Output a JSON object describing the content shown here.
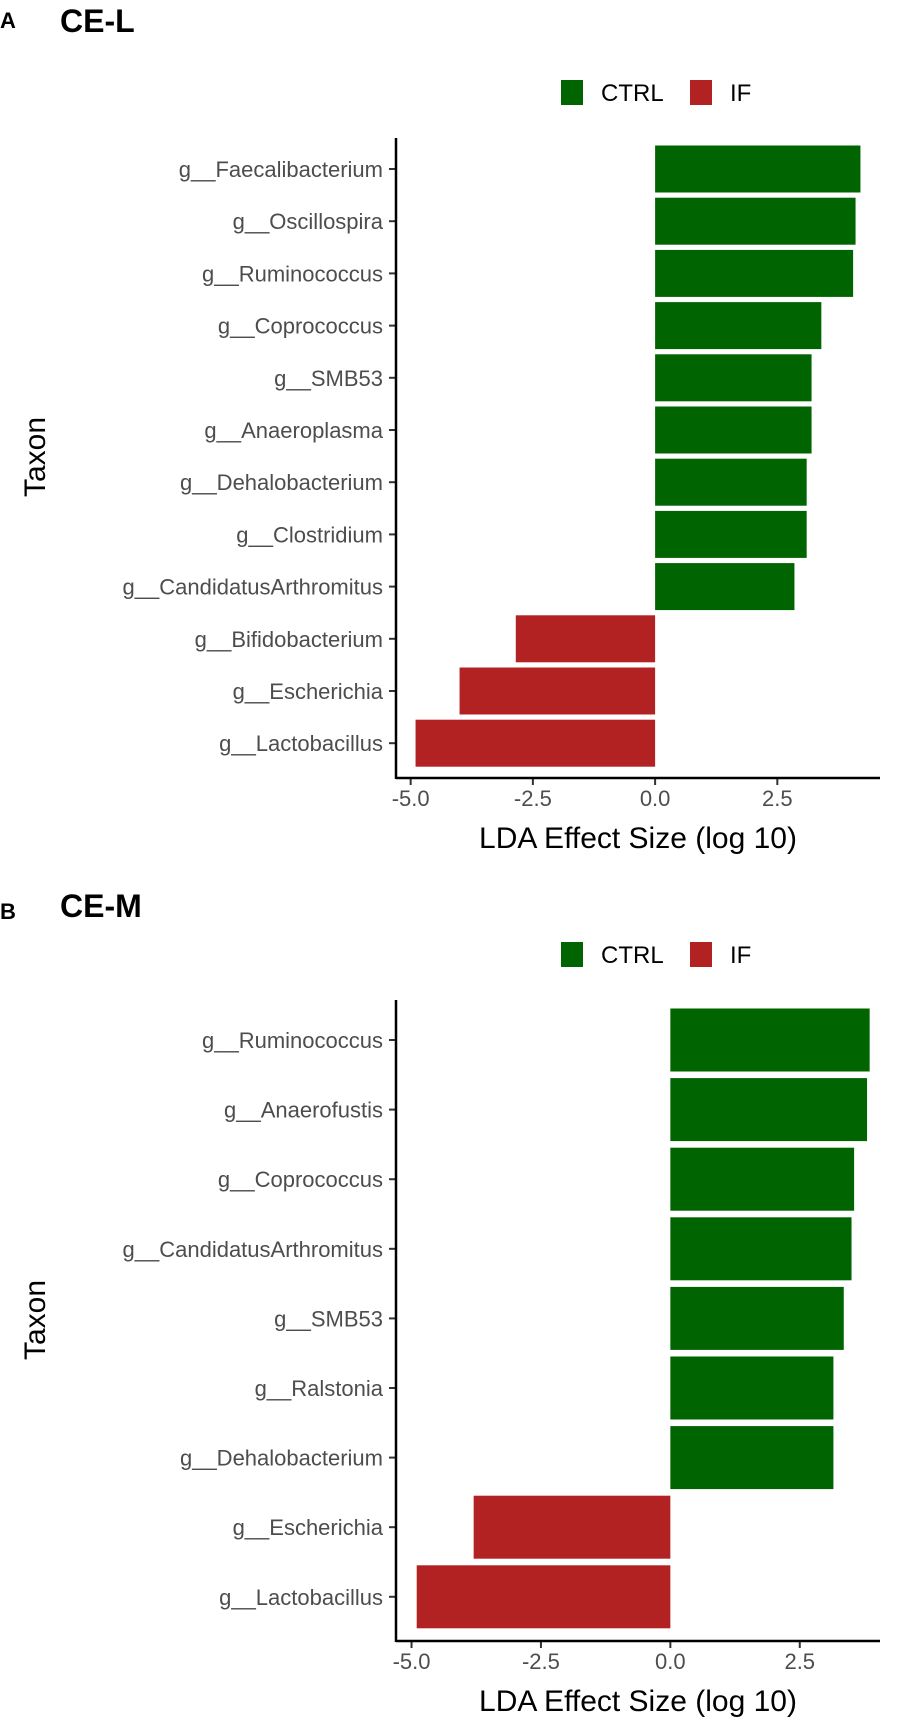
{
  "legend": [
    {
      "label": "CTRL",
      "color": "#006400"
    },
    {
      "label": "IF",
      "color": "#b22222"
    }
  ],
  "chart_data": [
    {
      "type": "bar",
      "orientation": "horizontal",
      "panel": "A",
      "title": "CE-L",
      "xlabel": "LDA Effect Size (log 10)",
      "ylabel": "Taxon",
      "xlim": [
        -5.3,
        4.6
      ],
      "xticks": [
        "-5.0",
        "-2.5",
        "0.0",
        "2.5"
      ],
      "xtick_values": [
        -5.0,
        -2.5,
        0.0,
        2.5
      ],
      "categories": [
        "g__Faecalibacterium",
        "g__Oscillospira",
        "g__Ruminococcus",
        "g__Coprococcus",
        "g__SMB53",
        "g__Anaeroplasma",
        "g__Dehalobacterium",
        "g__Clostridium",
        "g__CandidatusArthromitus",
        "g__Bifidobacterium",
        "g__Escherichia",
        "g__Lactobacillus"
      ],
      "values": [
        4.2,
        4.1,
        4.05,
        3.4,
        3.2,
        3.2,
        3.1,
        3.1,
        2.85,
        -2.85,
        -4.0,
        -4.9
      ],
      "groups": [
        "CTRL",
        "CTRL",
        "CTRL",
        "CTRL",
        "CTRL",
        "CTRL",
        "CTRL",
        "CTRL",
        "CTRL",
        "IF",
        "IF",
        "IF"
      ]
    },
    {
      "type": "bar",
      "orientation": "horizontal",
      "panel": "B",
      "title": "CE-M",
      "xlabel": "LDA Effect Size (log 10)",
      "ylabel": "Taxon",
      "xlim": [
        -5.3,
        4.05
      ],
      "xticks": [
        "-5.0",
        "-2.5",
        "0.0",
        "2.5"
      ],
      "xtick_values": [
        -5.0,
        -2.5,
        0.0,
        2.5
      ],
      "categories": [
        "g__Ruminococcus",
        "g__Anaerofustis",
        "g__Coprococcus",
        "g__CandidatusArthromitus",
        "g__SMB53",
        "g__Ralstonia",
        "g__Dehalobacterium",
        "g__Escherichia",
        "g__Lactobacillus"
      ],
      "values": [
        3.85,
        3.8,
        3.55,
        3.5,
        3.35,
        3.15,
        3.15,
        -3.8,
        -4.9
      ],
      "groups": [
        "CTRL",
        "CTRL",
        "CTRL",
        "CTRL",
        "CTRL",
        "CTRL",
        "CTRL",
        "IF",
        "IF"
      ]
    }
  ]
}
